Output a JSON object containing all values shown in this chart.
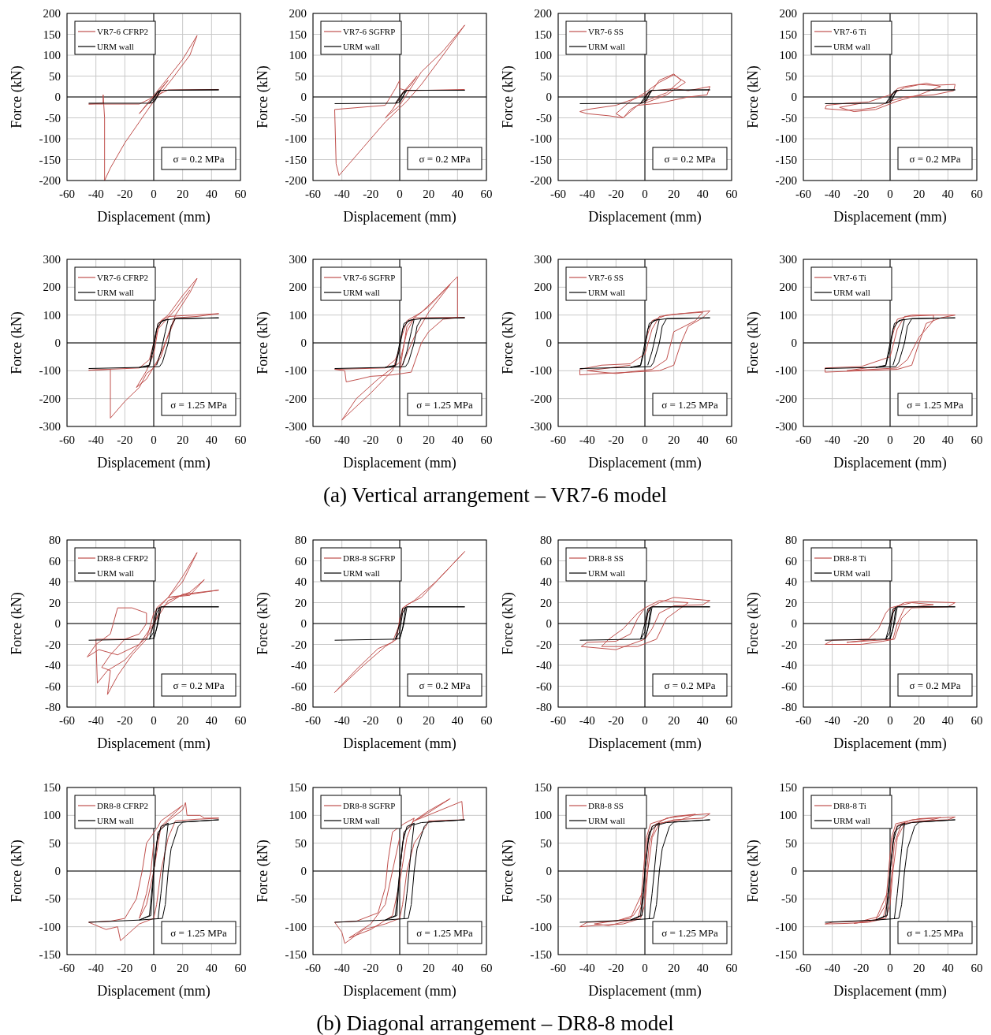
{
  "chart_data": [
    {
      "type": "line",
      "xlabel": "Displacement (mm)",
      "ylabel": "Force (kN)",
      "xlim": [
        -60,
        60
      ],
      "xticks": [
        -60,
        -40,
        -20,
        0,
        20,
        40,
        60
      ],
      "ylim": [
        -200,
        200
      ],
      "yticks": [
        -200,
        -150,
        -100,
        -50,
        0,
        50,
        100,
        150,
        200
      ],
      "grid": true,
      "legend": "top left",
      "annotations": [
        "σ = 0.2 MPa"
      ],
      "series": [
        {
          "name": "VR7-6 CFRP2",
          "color": "#c0504d",
          "x": [
            0,
            5,
            10,
            2,
            -5,
            -10,
            -2,
            12,
            20,
            30,
            25,
            12,
            5,
            0,
            -10,
            -20,
            -30,
            -34,
            -34,
            -35,
            -35,
            -45,
            -10,
            0,
            10,
            45
          ],
          "values": [
            0,
            20,
            40,
            5,
            -20,
            -40,
            -5,
            55,
            90,
            147,
            100,
            40,
            10,
            -10,
            -60,
            -110,
            -170,
            -200,
            -50,
            5,
            -15,
            -17,
            -17,
            0,
            17,
            18
          ]
        },
        {
          "name": "URM wall",
          "color": "#000000",
          "x": [
            -45,
            -3,
            0,
            3,
            5,
            45,
            5,
            2,
            -1,
            -3,
            0,
            2,
            4,
            2,
            0
          ],
          "values": [
            -15,
            -15,
            0,
            14,
            16,
            17,
            16,
            0,
            -14,
            -15,
            -5,
            8,
            15,
            -3,
            -14
          ]
        }
      ]
    },
    {
      "type": "line",
      "xlabel": "Displacement (mm)",
      "ylabel": "Force (kN)",
      "xlim": [
        -60,
        60
      ],
      "xticks": [
        -60,
        -40,
        -20,
        0,
        20,
        40,
        60
      ],
      "ylim": [
        -200,
        200
      ],
      "yticks": [
        -200,
        -150,
        -100,
        -50,
        0,
        50,
        100,
        150,
        200
      ],
      "grid": true,
      "legend": "top left",
      "annotations": [
        "σ = 0.2 MPa"
      ],
      "series": [
        {
          "name": "VR7-6 SGFRP",
          "color": "#c0504d",
          "x": [
            0,
            8,
            12,
            2,
            -5,
            -10,
            0,
            15,
            30,
            45,
            30,
            15,
            5,
            -10,
            -25,
            -42,
            -44,
            -45,
            -10,
            -3,
            0,
            0,
            5,
            45
          ],
          "values": [
            0,
            30,
            50,
            10,
            -30,
            -50,
            -20,
            60,
            110,
            172,
            100,
            30,
            -10,
            -60,
            -120,
            -188,
            -160,
            -30,
            -20,
            20,
            40,
            20,
            15,
            18
          ]
        },
        {
          "name": "URM wall",
          "color": "#000000",
          "x": [
            -45,
            -3,
            0,
            3,
            5,
            45,
            5,
            2,
            -1,
            -3,
            0,
            2,
            4,
            2,
            0
          ],
          "values": [
            -16,
            -15,
            0,
            14,
            16,
            16,
            16,
            0,
            -14,
            -15,
            -5,
            8,
            15,
            -3,
            -14
          ]
        }
      ]
    },
    {
      "type": "line",
      "xlabel": "Displacement (mm)",
      "ylabel": "Force (kN)",
      "xlim": [
        -60,
        60
      ],
      "xticks": [
        -60,
        -40,
        -20,
        0,
        20,
        40,
        60
      ],
      "ylim": [
        -200,
        200
      ],
      "yticks": [
        -200,
        -150,
        -100,
        -50,
        0,
        50,
        100,
        150,
        200
      ],
      "grid": true,
      "legend": "top left",
      "annotations": [
        "σ = 0.2 MPa"
      ],
      "series": [
        {
          "name": "VR7-6 SS",
          "color": "#c0504d",
          "x": [
            0,
            5,
            10,
            20,
            25,
            15,
            0,
            -10,
            -15,
            -25,
            -40,
            -45,
            -40,
            -20,
            0,
            5,
            20,
            30,
            45,
            43,
            30,
            10,
            -5,
            -15,
            -20,
            -10,
            0,
            10,
            20,
            28,
            15,
            0
          ],
          "values": [
            0,
            15,
            40,
            55,
            40,
            10,
            -10,
            -30,
            -50,
            -45,
            -40,
            -35,
            -30,
            -20,
            5,
            15,
            20,
            15,
            25,
            5,
            0,
            -15,
            -20,
            -50,
            -40,
            -10,
            10,
            35,
            53,
            35,
            5,
            -15
          ]
        },
        {
          "name": "URM wall",
          "color": "#000000",
          "x": [
            -45,
            -3,
            0,
            3,
            5,
            45,
            5,
            2,
            -1,
            -3,
            0,
            2,
            4,
            2,
            0
          ],
          "values": [
            -16,
            -15,
            0,
            14,
            16,
            17,
            16,
            0,
            -14,
            -15,
            -5,
            8,
            15,
            -3,
            -14
          ]
        }
      ]
    },
    {
      "type": "line",
      "xlabel": "Displacement (mm)",
      "ylabel": "Force (kN)",
      "xlim": [
        -60,
        60
      ],
      "xticks": [
        -60,
        -40,
        -20,
        0,
        20,
        40,
        60
      ],
      "ylim": [
        -200,
        200
      ],
      "yticks": [
        -200,
        -150,
        -100,
        -50,
        0,
        50,
        100,
        150,
        200
      ],
      "grid": true,
      "legend": "top left",
      "annotations": [
        "σ = 0.2 MPa"
      ],
      "series": [
        {
          "name": "VR7-6 Ti",
          "color": "#c0504d",
          "x": [
            0,
            5,
            10,
            20,
            30,
            45,
            44,
            30,
            10,
            0,
            -10,
            -20,
            -30,
            -45,
            -44,
            -30,
            -15,
            0,
            10,
            25,
            35,
            20,
            5,
            -10,
            -25,
            -35,
            -20
          ],
          "values": [
            0,
            20,
            25,
            30,
            28,
            30,
            15,
            5,
            0,
            -10,
            -25,
            -30,
            -32,
            -28,
            -20,
            -15,
            -12,
            5,
            22,
            33,
            25,
            5,
            -10,
            -30,
            -35,
            -25,
            -15
          ]
        },
        {
          "name": "URM wall",
          "color": "#000000",
          "x": [
            -45,
            -3,
            0,
            3,
            5,
            45,
            5,
            2,
            -1,
            -3,
            0,
            2,
            4,
            2,
            0
          ],
          "values": [
            -16,
            -15,
            0,
            14,
            16,
            17,
            16,
            0,
            -14,
            -15,
            -5,
            8,
            15,
            -3,
            -14
          ]
        }
      ]
    },
    {
      "type": "line",
      "xlabel": "Displacement (mm)",
      "ylabel": "Force (kN)",
      "xlim": [
        -60,
        60
      ],
      "xticks": [
        -60,
        -40,
        -20,
        0,
        20,
        40,
        60
      ],
      "ylim": [
        -300,
        300
      ],
      "yticks": [
        -300,
        -200,
        -100,
        0,
        100,
        200,
        300
      ],
      "grid": true,
      "legend": "top left",
      "annotations": [
        "σ = 1.25 MPa",
        "(a) Vertical arrangement – VR7-6 model"
      ],
      "series": [
        {
          "name": "VR7-6 CFRP2",
          "color": "#c0504d",
          "x": [
            0,
            5,
            10,
            20,
            30,
            25,
            15,
            10,
            5,
            0,
            -5,
            -10,
            -20,
            -30,
            -30,
            -45,
            -10,
            -3,
            0,
            3,
            10,
            45,
            30,
            15,
            12,
            8,
            3,
            -5,
            -12,
            -5,
            0,
            3,
            15,
            25
          ],
          "values": [
            0,
            80,
            100,
            170,
            232,
            180,
            100,
            30,
            -50,
            -90,
            -110,
            -160,
            -210,
            -270,
            -95,
            -98,
            -90,
            -60,
            0,
            70,
            95,
            105,
            95,
            90,
            50,
            0,
            -60,
            -130,
            -160,
            -100,
            -40,
            50,
            120,
            190
          ]
        },
        {
          "name": "URM wall",
          "color": "#000000",
          "x": [
            -45,
            -10,
            -3,
            0,
            3,
            8,
            15,
            45,
            15,
            12,
            10,
            6,
            4,
            -10,
            -3,
            0,
            2,
            6,
            10,
            8,
            5,
            2
          ],
          "values": [
            -92,
            -88,
            -80,
            0,
            70,
            82,
            87,
            90,
            87,
            60,
            0,
            -70,
            -85,
            -88,
            -82,
            -20,
            50,
            80,
            85,
            40,
            -30,
            -80
          ]
        }
      ]
    },
    {
      "type": "line",
      "xlabel": "Displacement (mm)",
      "ylabel": "Force (kN)",
      "xlim": [
        -60,
        60
      ],
      "xticks": [
        -60,
        -40,
        -20,
        0,
        20,
        40,
        60
      ],
      "ylim": [
        -300,
        300
      ],
      "yticks": [
        -300,
        -200,
        -100,
        0,
        100,
        200,
        300
      ],
      "grid": true,
      "legend": "top left",
      "annotations": [
        "σ = 1.25 MPa"
      ],
      "series": [
        {
          "name": "VR7-6 SGFRP",
          "color": "#c0504d",
          "x": [
            0,
            5,
            15,
            25,
            40,
            40,
            30,
            20,
            15,
            8,
            -5,
            -20,
            -28,
            -37,
            -38,
            -45,
            -10,
            -3,
            0,
            -5,
            -20,
            -40,
            -30,
            -15,
            0,
            5,
            10,
            20,
            35,
            20,
            10,
            0,
            5,
            10,
            45
          ],
          "values": [
            0,
            80,
            110,
            160,
            238,
            90,
            85,
            40,
            0,
            -105,
            -115,
            -120,
            -130,
            -140,
            -100,
            -95,
            -90,
            -60,
            -20,
            -100,
            -180,
            -277,
            -200,
            -130,
            -70,
            40,
            90,
            130,
            210,
            110,
            20,
            -100,
            60,
            90,
            92
          ]
        },
        {
          "name": "URM wall",
          "color": "#000000",
          "x": [
            -45,
            -10,
            -3,
            0,
            3,
            8,
            15,
            45,
            15,
            12,
            10,
            6,
            4,
            -10,
            -3,
            0,
            2,
            6,
            10,
            8,
            5,
            2
          ],
          "values": [
            -92,
            -88,
            -80,
            0,
            70,
            82,
            87,
            90,
            87,
            60,
            0,
            -70,
            -85,
            -88,
            -82,
            -20,
            50,
            80,
            85,
            40,
            -30,
            -80
          ]
        }
      ]
    },
    {
      "type": "line",
      "xlabel": "Displacement (mm)",
      "ylabel": "Force (kN)",
      "xlim": [
        -60,
        60
      ],
      "xticks": [
        -60,
        -40,
        -20,
        0,
        20,
        40,
        60
      ],
      "ylim": [
        -300,
        300
      ],
      "yticks": [
        -300,
        -200,
        -100,
        0,
        100,
        200,
        300
      ],
      "grid": true,
      "legend": "top left",
      "annotations": [
        "σ = 1.25 MPa"
      ],
      "series": [
        {
          "name": "VR7-6 SS",
          "color": "#c0504d",
          "x": [
            0,
            5,
            15,
            45,
            40,
            30,
            25,
            20,
            10,
            -10,
            -30,
            -45,
            -45,
            -30,
            -10,
            0,
            5,
            10,
            25,
            40,
            35,
            20,
            15,
            5,
            -20,
            -40,
            -10
          ],
          "values": [
            0,
            80,
            100,
            115,
            90,
            60,
            0,
            -80,
            -100,
            -105,
            -110,
            -115,
            -95,
            -80,
            -75,
            -40,
            50,
            95,
            105,
            110,
            80,
            40,
            -60,
            -95,
            -110,
            -100,
            -80
          ]
        },
        {
          "name": "URM wall",
          "color": "#000000",
          "x": [
            -45,
            -10,
            -3,
            0,
            3,
            8,
            15,
            45,
            15,
            12,
            10,
            6,
            4,
            -10,
            -3,
            0,
            2,
            6,
            10,
            8,
            5,
            2
          ],
          "values": [
            -92,
            -88,
            -80,
            0,
            70,
            82,
            87,
            90,
            87,
            60,
            0,
            -70,
            -85,
            -88,
            -82,
            -20,
            50,
            80,
            85,
            40,
            -30,
            -80
          ]
        }
      ]
    },
    {
      "type": "line",
      "xlabel": "Displacement (mm)",
      "ylabel": "Force (kN)",
      "xlim": [
        -60,
        60
      ],
      "xticks": [
        -60,
        -40,
        -20,
        0,
        20,
        40,
        60
      ],
      "ylim": [
        -300,
        300
      ],
      "yticks": [
        -300,
        -200,
        -100,
        0,
        100,
        200,
        300
      ],
      "grid": true,
      "legend": "top left",
      "annotations": [
        "σ = 1.25 MPa"
      ],
      "series": [
        {
          "name": "VR7-6 Ti",
          "color": "#c0504d",
          "x": [
            0,
            5,
            15,
            45,
            35,
            25,
            20,
            15,
            5,
            -20,
            -45,
            -45,
            -20,
            0,
            5,
            10,
            30,
            30,
            20,
            12,
            5,
            -30,
            -10
          ],
          "values": [
            0,
            85,
            100,
            100,
            90,
            70,
            0,
            -80,
            -95,
            -100,
            -105,
            -90,
            -85,
            -50,
            50,
            95,
            100,
            80,
            20,
            -60,
            -90,
            -100,
            -85
          ]
        },
        {
          "name": "URM wall",
          "color": "#000000",
          "x": [
            -45,
            -10,
            -3,
            0,
            3,
            8,
            15,
            45,
            15,
            12,
            10,
            6,
            4,
            -10,
            -3,
            0,
            2,
            6,
            10,
            8,
            5,
            2
          ],
          "values": [
            -92,
            -88,
            -80,
            0,
            70,
            82,
            87,
            90,
            87,
            60,
            0,
            -70,
            -85,
            -88,
            -82,
            -20,
            50,
            80,
            85,
            40,
            -30,
            -80
          ]
        }
      ]
    },
    {
      "type": "line",
      "xlabel": "Displacement (mm)",
      "ylabel": "Force (kN)",
      "xlim": [
        -60,
        60
      ],
      "xticks": [
        -60,
        -40,
        -20,
        0,
        20,
        40,
        60
      ],
      "ylim": [
        -80,
        80
      ],
      "yticks": [
        -80,
        -60,
        -40,
        -20,
        0,
        20,
        40,
        60,
        80
      ],
      "grid": true,
      "legend": "top left",
      "annotations": [
        "σ = 0.2 MPa"
      ],
      "series": [
        {
          "name": "DR8-8 CFRP2",
          "color": "#c0504d",
          "x": [
            0,
            2,
            10,
            20,
            30,
            20,
            10,
            0,
            -5,
            -15,
            -25,
            -32,
            -30,
            -36,
            -30,
            -20,
            -10,
            -5,
            -5,
            -15,
            -25,
            -30,
            -40,
            -46,
            -38,
            -25,
            -10,
            0,
            10,
            25,
            35,
            25,
            10,
            45,
            20,
            5,
            -3,
            -10,
            -20,
            -32,
            -39,
            -40,
            -10
          ],
          "values": [
            0,
            15,
            25,
            40,
            68,
            45,
            25,
            10,
            -15,
            -30,
            -50,
            -68,
            -45,
            -42,
            -30,
            -15,
            -10,
            0,
            10,
            15,
            15,
            -10,
            -20,
            -32,
            -25,
            -30,
            -20,
            0,
            22,
            30,
            42,
            27,
            25,
            32,
            28,
            15,
            -10,
            -20,
            -35,
            -45,
            -57,
            -15,
            -15
          ]
        },
        {
          "name": "URM wall",
          "color": "#000000",
          "x": [
            -45,
            -3,
            0,
            2,
            5,
            45,
            5,
            3,
            0,
            -3,
            0,
            2,
            4,
            2,
            0
          ],
          "values": [
            -16,
            -15,
            0,
            14,
            16,
            16,
            16,
            0,
            -14,
            -15,
            -8,
            10,
            15,
            -5,
            -15
          ]
        }
      ]
    },
    {
      "type": "line",
      "xlabel": "Displacement (mm)",
      "ylabel": "Force (kN)",
      "xlim": [
        -60,
        60
      ],
      "xticks": [
        -60,
        -40,
        -20,
        0,
        20,
        40,
        60
      ],
      "ylim": [
        -80,
        80
      ],
      "yticks": [
        -80,
        -60,
        -40,
        -20,
        0,
        20,
        40,
        60,
        80
      ],
      "grid": true,
      "legend": "top left",
      "annotations": [
        "σ = 0.2 MPa"
      ],
      "series": [
        {
          "name": "DR8-8 SGFRP",
          "color": "#c0504d",
          "x": [
            0,
            2,
            10,
            25,
            45,
            30,
            15,
            5,
            0,
            -2,
            -10,
            -25,
            -45,
            -30,
            -15,
            -5,
            0,
            2
          ],
          "values": [
            0,
            15,
            22,
            40,
            69,
            47,
            25,
            18,
            5,
            -15,
            -22,
            -40,
            -66,
            -44,
            -24,
            -18,
            0,
            15
          ]
        },
        {
          "name": "URM wall",
          "color": "#000000",
          "x": [
            -45,
            -3,
            0,
            2,
            5,
            45,
            5,
            3,
            0,
            -3,
            0,
            2,
            4,
            2,
            0
          ],
          "values": [
            -16,
            -15,
            0,
            14,
            16,
            16,
            16,
            0,
            -14,
            -15,
            -8,
            10,
            15,
            -5,
            -15
          ]
        }
      ]
    },
    {
      "type": "line",
      "xlabel": "Displacement (mm)",
      "ylabel": "Force (kN)",
      "xlim": [
        -60,
        60
      ],
      "xticks": [
        -60,
        -40,
        -20,
        0,
        20,
        40,
        60
      ],
      "ylim": [
        -80,
        80
      ],
      "yticks": [
        -80,
        -60,
        -40,
        -20,
        0,
        20,
        40,
        60,
        80
      ],
      "grid": true,
      "legend": "top left",
      "annotations": [
        "σ = 0.2 MPa"
      ],
      "series": [
        {
          "name": "DR8-8 SS",
          "color": "#c0504d",
          "x": [
            0,
            3,
            10,
            20,
            45,
            40,
            20,
            10,
            5,
            0,
            -10,
            -20,
            -44,
            -40,
            -20,
            -10,
            -5,
            0,
            10,
            30,
            25,
            15,
            8,
            -5,
            -30,
            -25,
            -15,
            -5,
            0
          ],
          "values": [
            0,
            15,
            20,
            25,
            22,
            18,
            17,
            10,
            -5,
            -15,
            -20,
            -25,
            -22,
            -18,
            -17,
            -10,
            5,
            15,
            22,
            20,
            15,
            5,
            -15,
            -22,
            -22,
            -15,
            -5,
            10,
            15
          ]
        },
        {
          "name": "URM wall",
          "color": "#000000",
          "x": [
            -45,
            -3,
            0,
            2,
            5,
            45,
            5,
            3,
            0,
            -3,
            0,
            2,
            4,
            2,
            0
          ],
          "values": [
            -16,
            -15,
            0,
            14,
            16,
            16,
            16,
            0,
            -14,
            -15,
            -8,
            10,
            15,
            -5,
            -15
          ]
        }
      ]
    },
    {
      "type": "line",
      "xlabel": "Displacement (mm)",
      "ylabel": "Force (kN)",
      "xlim": [
        -60,
        60
      ],
      "xticks": [
        -60,
        -40,
        -20,
        0,
        20,
        40,
        60
      ],
      "ylim": [
        -80,
        80
      ],
      "yticks": [
        -80,
        -60,
        -40,
        -20,
        0,
        20,
        40,
        60,
        80
      ],
      "grid": true,
      "legend": "top left",
      "annotations": [
        "σ = 0.2 MPa"
      ],
      "series": [
        {
          "name": "DR8-8 Ti",
          "color": "#c0504d",
          "x": [
            0,
            3,
            10,
            20,
            45,
            40,
            15,
            8,
            3,
            -5,
            -20,
            -45,
            -40,
            -15,
            -8,
            -3,
            0,
            15,
            30,
            10,
            5,
            2,
            -30,
            -10
          ],
          "values": [
            0,
            15,
            20,
            21,
            20,
            16,
            15,
            5,
            -15,
            -17,
            -20,
            -20,
            -16,
            -15,
            -5,
            10,
            15,
            20,
            18,
            15,
            0,
            -15,
            -18,
            -15
          ]
        },
        {
          "name": "URM wall",
          "color": "#000000",
          "x": [
            -45,
            -3,
            0,
            2,
            5,
            45,
            5,
            3,
            0,
            -3,
            0,
            2,
            4,
            2,
            0
          ],
          "values": [
            -16,
            -15,
            0,
            14,
            16,
            16,
            16,
            0,
            -14,
            -15,
            -8,
            10,
            15,
            -5,
            -15
          ]
        }
      ]
    },
    {
      "type": "line",
      "xlabel": "Displacement (mm)",
      "ylabel": "Force (kN)",
      "xlim": [
        -60,
        60
      ],
      "xticks": [
        -60,
        -40,
        -20,
        0,
        20,
        40,
        60
      ],
      "ylim": [
        -150,
        150
      ],
      "yticks": [
        -150,
        -100,
        -50,
        0,
        50,
        100,
        150
      ],
      "grid": true,
      "legend": "top left",
      "annotations": [
        "σ = 1.25 MPa",
        "(b) Diagonal arrangement – DR8-8 model"
      ],
      "series": [
        {
          "name": "DR8-8 CFRP2",
          "color": "#c0504d",
          "x": [
            0,
            3,
            10,
            20,
            22,
            23,
            32,
            35,
            45,
            30,
            15,
            10,
            5,
            2,
            0,
            -10,
            -23,
            -25,
            -33,
            -45,
            -30,
            -20,
            -12,
            -8,
            -5,
            3,
            5,
            20,
            5,
            0,
            -5,
            -10,
            -5,
            -2,
            0
          ],
          "values": [
            0,
            70,
            90,
            110,
            123,
            100,
            100,
            95,
            95,
            93,
            90,
            60,
            0,
            -60,
            -85,
            -95,
            -125,
            -100,
            -105,
            -92,
            -90,
            -85,
            -50,
            0,
            50,
            80,
            90,
            118,
            80,
            0,
            -60,
            -85,
            -40,
            0,
            50
          ]
        },
        {
          "name": "URM wall",
          "color": "#000000",
          "x": [
            -45,
            -10,
            -3,
            0,
            3,
            8,
            15,
            45,
            20,
            17,
            12,
            10,
            8,
            6,
            -10,
            -2,
            0,
            2,
            5,
            10,
            8,
            5,
            3
          ],
          "values": [
            -92,
            -88,
            -80,
            0,
            70,
            82,
            87,
            92,
            88,
            80,
            40,
            0,
            -60,
            -85,
            -88,
            -80,
            0,
            50,
            80,
            86,
            40,
            -40,
            -85
          ]
        }
      ]
    },
    {
      "type": "line",
      "xlabel": "Displacement (mm)",
      "ylabel": "Force (kN)",
      "xlim": [
        -60,
        60
      ],
      "xticks": [
        -60,
        -40,
        -20,
        0,
        20,
        40,
        60
      ],
      "ylim": [
        -150,
        150
      ],
      "yticks": [
        -150,
        -100,
        -50,
        0,
        50,
        100,
        150
      ],
      "grid": true,
      "legend": "top left",
      "annotations": [
        "σ = 1.25 MPa"
      ],
      "series": [
        {
          "name": "DR8-8 SGFRP",
          "color": "#c0504d",
          "x": [
            0,
            3,
            10,
            20,
            35,
            20,
            10,
            43,
            44,
            20,
            18,
            10,
            5,
            2,
            0,
            -10,
            -25,
            -38,
            -40,
            -45,
            -30,
            -15,
            -10,
            -8,
            -5,
            3,
            10,
            5,
            0,
            -5,
            -20,
            -35,
            -20,
            -10,
            -5,
            0
          ],
          "values": [
            0,
            70,
            90,
            105,
            130,
            108,
            90,
            125,
            92,
            90,
            80,
            50,
            0,
            -60,
            -85,
            -95,
            -105,
            -130,
            -110,
            -92,
            -90,
            -75,
            -30,
            20,
            70,
            85,
            95,
            60,
            -20,
            -80,
            -105,
            -120,
            -95,
            -60,
            0,
            60
          ]
        },
        {
          "name": "URM wall",
          "color": "#000000",
          "x": [
            -45,
            -10,
            -3,
            0,
            3,
            8,
            15,
            45,
            20,
            17,
            12,
            10,
            8,
            6,
            -10,
            -2,
            0,
            2,
            5,
            10,
            8,
            5,
            3
          ],
          "values": [
            -92,
            -88,
            -80,
            0,
            70,
            82,
            87,
            92,
            88,
            80,
            40,
            0,
            -60,
            -85,
            -88,
            -80,
            0,
            50,
            80,
            86,
            40,
            -40,
            -85
          ]
        }
      ]
    },
    {
      "type": "line",
      "xlabel": "Displacement (mm)",
      "ylabel": "Force (kN)",
      "xlim": [
        -60,
        60
      ],
      "xticks": [
        -60,
        -40,
        -20,
        0,
        20,
        40,
        60
      ],
      "ylim": [
        -150,
        150
      ],
      "yticks": [
        -150,
        -100,
        -50,
        0,
        50,
        100,
        150
      ],
      "grid": true,
      "legend": "top left",
      "annotations": [
        "σ = 1.25 MPa"
      ],
      "series": [
        {
          "name": "DR8-8 SS",
          "color": "#c0504d",
          "x": [
            0,
            2,
            5,
            15,
            30,
            45,
            40,
            20,
            10,
            5,
            2,
            0,
            -3,
            -15,
            -30,
            -45,
            -40,
            -20,
            -8,
            -3,
            -1,
            1,
            4,
            20,
            35,
            25,
            8,
            3,
            0,
            -5,
            -25,
            -35,
            -10,
            -2
          ],
          "values": [
            0,
            60,
            80,
            95,
            100,
            103,
            95,
            92,
            85,
            60,
            0,
            -60,
            -85,
            -95,
            -97,
            -100,
            -92,
            -90,
            -80,
            -60,
            0,
            60,
            85,
            98,
            102,
            92,
            85,
            50,
            -40,
            -85,
            -98,
            -95,
            -85,
            -40
          ]
        },
        {
          "name": "URM wall",
          "color": "#000000",
          "x": [
            -45,
            -10,
            -3,
            0,
            3,
            8,
            15,
            45,
            20,
            17,
            12,
            10,
            8,
            6,
            -10,
            -2,
            0,
            2,
            5,
            10,
            8,
            5,
            3
          ],
          "values": [
            -92,
            -88,
            -80,
            0,
            70,
            82,
            87,
            92,
            88,
            80,
            40,
            0,
            -60,
            -85,
            -88,
            -80,
            0,
            50,
            80,
            86,
            40,
            -40,
            -85
          ]
        }
      ]
    },
    {
      "type": "line",
      "xlabel": "Displacement (mm)",
      "ylabel": "Force (kN)",
      "xlim": [
        -60,
        60
      ],
      "xticks": [
        -60,
        -40,
        -20,
        0,
        20,
        40,
        60
      ],
      "ylim": [
        -150,
        150
      ],
      "yticks": [
        -150,
        -100,
        -50,
        0,
        50,
        100,
        150
      ],
      "grid": true,
      "legend": "top left",
      "annotations": [
        "σ = 1.25 MPa"
      ],
      "series": [
        {
          "name": "DR8-8 Ti",
          "color": "#c0504d",
          "x": [
            0,
            2,
            5,
            15,
            30,
            45,
            40,
            20,
            10,
            5,
            2,
            0,
            -3,
            -15,
            -30,
            -45,
            -40,
            -20,
            -8,
            -3,
            -1,
            1,
            4,
            20,
            35,
            25,
            8,
            3,
            0,
            -5,
            -25,
            -10,
            -2
          ],
          "values": [
            0,
            60,
            82,
            92,
            95,
            97,
            92,
            90,
            85,
            60,
            0,
            -60,
            -85,
            -92,
            -94,
            -95,
            -92,
            -90,
            -82,
            -60,
            0,
            60,
            85,
            94,
            96,
            90,
            85,
            50,
            -40,
            -85,
            -94,
            -88,
            -40
          ]
        },
        {
          "name": "URM wall",
          "color": "#000000",
          "x": [
            -45,
            -10,
            -3,
            0,
            3,
            8,
            15,
            45,
            20,
            17,
            12,
            10,
            8,
            6,
            -10,
            -2,
            0,
            2,
            5,
            10,
            8,
            5,
            3
          ],
          "values": [
            -92,
            -88,
            -80,
            0,
            70,
            82,
            87,
            92,
            88,
            80,
            40,
            0,
            -60,
            -85,
            -88,
            -80,
            0,
            50,
            80,
            86,
            40,
            -40,
            -85
          ]
        }
      ]
    }
  ]
}
